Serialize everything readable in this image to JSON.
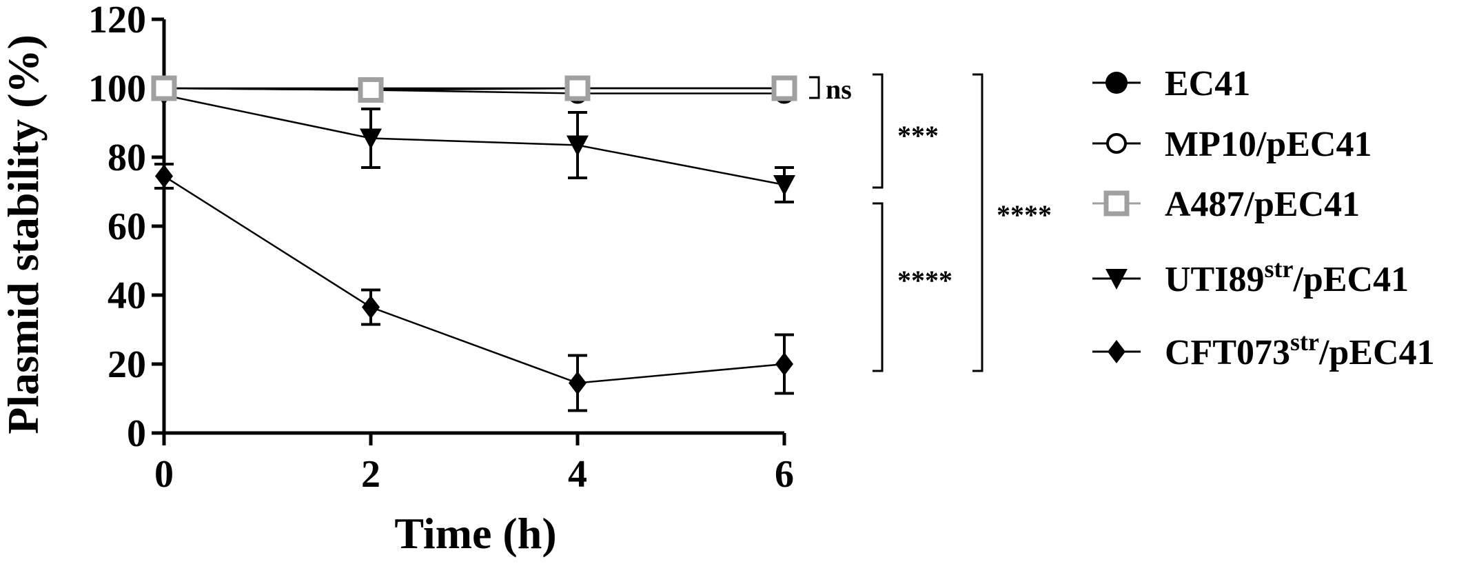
{
  "chart_data": {
    "type": "line",
    "xlabel": "Time (h)",
    "ylabel": "Plasmid stability (%)",
    "xlim": [
      0,
      6
    ],
    "ylim": [
      0,
      120
    ],
    "xticks": [
      "0",
      "2",
      "4",
      "6"
    ],
    "yticks": [
      "0",
      "20",
      "40",
      "60",
      "80",
      "100",
      "120"
    ],
    "grid": false,
    "legend_position": "right",
    "x": [
      0,
      2,
      4,
      6
    ],
    "series": [
      {
        "name": "EC41",
        "marker": "filled-circle",
        "color": "#000000",
        "values": [
          100,
          100,
          100,
          100
        ],
        "errors": [
          0,
          0,
          0,
          0
        ]
      },
      {
        "name": "MP10/pEC41",
        "marker": "open-circle",
        "color": "#000000",
        "values": [
          100,
          99.5,
          98.5,
          98.5
        ],
        "errors": [
          0,
          0,
          0,
          0
        ]
      },
      {
        "name": "A487/pEC41",
        "marker": "open-square",
        "color": "#a0a0a0",
        "values": [
          100,
          99.5,
          100,
          100
        ],
        "errors": [
          0,
          0,
          0,
          0
        ]
      },
      {
        "name": "UTI89str/pEC41",
        "name_main": "UTI89",
        "name_sup": "str",
        "name_suffix": "/pEC41",
        "marker": "filled-triangle-down",
        "color": "#000000",
        "values": [
          98,
          85.5,
          83.5,
          72
        ],
        "errors": [
          0,
          8.5,
          9.5,
          5
        ]
      },
      {
        "name": "CFT073str/pEC41",
        "name_main": "CFT073",
        "name_sup": "str",
        "name_suffix": "/pEC41",
        "marker": "filled-diamond",
        "color": "#000000",
        "values": [
          74.5,
          36.5,
          14.5,
          20
        ],
        "errors": [
          3.5,
          5,
          8,
          8.5
        ]
      }
    ],
    "significance": [
      {
        "label": "ns",
        "from": 100,
        "to": 100
      },
      {
        "label": "***",
        "from": 100,
        "to": 72
      },
      {
        "label": "****",
        "from": 66,
        "to": 18
      },
      {
        "label": "****",
        "from": 100,
        "to": 18
      }
    ]
  }
}
